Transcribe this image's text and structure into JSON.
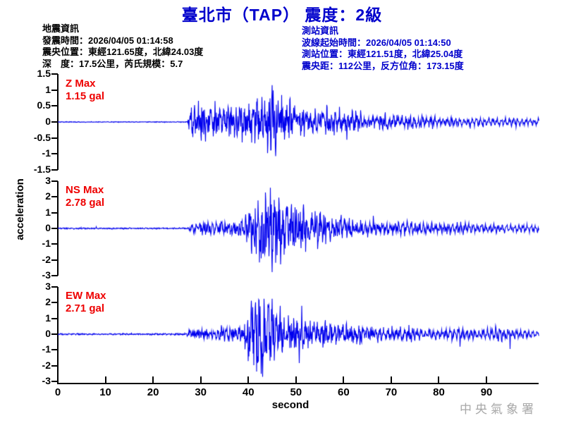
{
  "title": "臺北市（TAP） 震度：2級",
  "colors": {
    "title": "#0000cc",
    "station_info": "#0000cc",
    "waveform": "#0000ee",
    "peak_label": "#ee0000",
    "watermark": "#a8a8a8",
    "axis": "#000000",
    "earthquake_info": "#000000"
  },
  "earthquake_info": {
    "heading": "地震資訊",
    "lines": [
      "發震時間：2026/04/05 01:14:58",
      "震央位置：東經121.65度，北緯24.03度",
      "深　度：17.5公里，芮氏規模：5.7"
    ]
  },
  "station_info": {
    "heading": "測站資訊",
    "lines": [
      "波線起始時間：2026/04/05 01:14:50",
      "測站位置：東經121.51度，北緯25.04度",
      "震央距：112公里，反方位角：173.15度"
    ]
  },
  "watermark": "中央氣象署",
  "chart_data": {
    "type": "line",
    "title": "臺北市（TAP） 震度：2級",
    "xlabel": "second",
    "ylabel": "acceleration",
    "x_unit": "second",
    "y_unit": "gal",
    "xlim": [
      0,
      101
    ],
    "x_ticks": [
      0,
      10,
      20,
      30,
      40,
      50,
      60,
      70,
      80,
      90
    ],
    "grid": false,
    "legend": "none",
    "series": [
      {
        "name": "Z",
        "max_label": "Z Max",
        "max_value_label": "1.15 gal",
        "peak_gal": 1.15,
        "peak_time_s": 45,
        "peak_sign": 1,
        "ylim": [
          -1.5,
          1.5
        ],
        "y_ticks": [
          "1.5",
          "1",
          "0.5",
          "0",
          "-0.5",
          "-1",
          "-1.5"
        ],
        "envelope": [
          [
            0,
            0.012
          ],
          [
            27.2,
            0.012
          ],
          [
            28,
            0.55
          ],
          [
            30,
            0.75
          ],
          [
            33,
            0.62
          ],
          [
            36,
            0.58
          ],
          [
            39,
            0.7
          ],
          [
            42,
            0.85
          ],
          [
            44,
            1.02
          ],
          [
            46,
            1.08
          ],
          [
            48,
            0.75
          ],
          [
            50,
            0.55
          ],
          [
            53,
            0.42
          ],
          [
            56,
            0.4
          ],
          [
            57,
            0.72
          ],
          [
            58,
            0.45
          ],
          [
            60,
            0.32
          ],
          [
            63,
            0.48
          ],
          [
            64,
            0.3
          ],
          [
            68,
            0.3
          ],
          [
            72,
            0.25
          ],
          [
            78,
            0.22
          ],
          [
            85,
            0.18
          ],
          [
            92,
            0.16
          ],
          [
            101,
            0.13
          ]
        ]
      },
      {
        "name": "NS",
        "max_label": "NS Max",
        "max_value_label": "2.78 gal",
        "peak_gal": 2.78,
        "peak_time_s": 45,
        "peak_sign": -1,
        "ylim": [
          -3,
          3
        ],
        "y_ticks": [
          "3",
          "2",
          "1",
          "0",
          "-1",
          "-2",
          "-3"
        ],
        "envelope": [
          [
            0,
            0.04
          ],
          [
            27.4,
            0.04
          ],
          [
            28,
            0.3
          ],
          [
            30,
            0.35
          ],
          [
            33,
            0.4
          ],
          [
            36,
            0.45
          ],
          [
            38,
            0.5
          ],
          [
            40,
            0.9
          ],
          [
            41,
            1.8
          ],
          [
            43,
            2.2
          ],
          [
            44,
            2.55
          ],
          [
            45,
            2.4
          ],
          [
            46,
            2.3
          ],
          [
            47,
            2.0
          ],
          [
            48,
            1.8
          ],
          [
            50,
            1.6
          ],
          [
            52,
            1.4
          ],
          [
            54,
            1.3
          ],
          [
            56,
            1.0
          ],
          [
            58,
            0.8
          ],
          [
            60,
            0.7
          ],
          [
            63,
            0.5
          ],
          [
            66,
            0.45
          ],
          [
            70,
            0.4
          ],
          [
            75,
            0.48
          ],
          [
            80,
            0.35
          ],
          [
            84,
            0.42
          ],
          [
            88,
            0.3
          ],
          [
            92,
            0.32
          ],
          [
            96,
            0.25
          ],
          [
            101,
            0.25
          ]
        ]
      },
      {
        "name": "EW",
        "max_label": "EW Max",
        "max_value_label": "2.71 gal",
        "peak_gal": 2.71,
        "peak_time_s": 43,
        "peak_sign": -1,
        "ylim": [
          -3,
          3
        ],
        "y_ticks": [
          "3",
          "2",
          "1",
          "0",
          "-1",
          "-2",
          "-3"
        ],
        "envelope": [
          [
            0,
            0.04
          ],
          [
            26.8,
            0.05
          ],
          [
            27.5,
            0.25
          ],
          [
            30,
            0.3
          ],
          [
            33,
            0.35
          ],
          [
            36,
            0.42
          ],
          [
            38,
            0.5
          ],
          [
            40,
            1.2
          ],
          [
            41,
            2.3
          ],
          [
            42,
            2.55
          ],
          [
            43,
            2.6
          ],
          [
            44,
            2.3
          ],
          [
            45,
            1.8
          ],
          [
            46,
            1.5
          ],
          [
            48,
            1.2
          ],
          [
            50,
            1.0
          ],
          [
            52,
            0.9
          ],
          [
            54,
            0.8
          ],
          [
            56,
            0.9
          ],
          [
            58,
            0.7
          ],
          [
            60,
            0.6
          ],
          [
            63,
            0.55
          ],
          [
            66,
            0.5
          ],
          [
            70,
            0.45
          ],
          [
            73,
            0.52
          ],
          [
            76,
            0.4
          ],
          [
            80,
            0.35
          ],
          [
            84,
            0.42
          ],
          [
            88,
            0.3
          ],
          [
            92,
            0.5
          ],
          [
            96,
            0.3
          ],
          [
            101,
            0.25
          ]
        ]
      }
    ]
  }
}
